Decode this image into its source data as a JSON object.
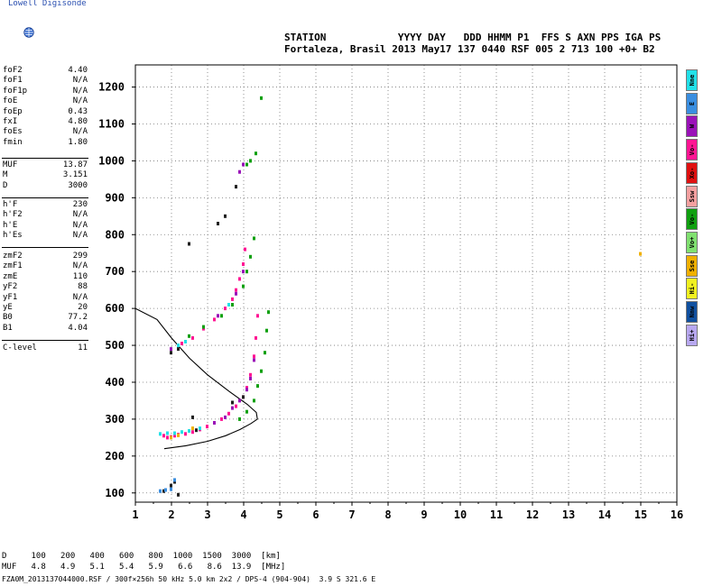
{
  "logo": {
    "text": "Lowell Digisonde"
  },
  "header": {
    "line1": "STATION            YYYY DAY   DDD HHMM P1  FFS S AXN PPS IGA PS",
    "line2": "Fortaleza, Brasil 2013 May17 137 0440 RSF 005 2 713 100 +0+ B2"
  },
  "params": {
    "group1": [
      {
        "label": "foF2",
        "value": "4.40"
      },
      {
        "label": "foF1",
        "value": "N/A"
      },
      {
        "label": "foF1p",
        "value": "N/A"
      },
      {
        "label": "foE",
        "value": "N/A"
      },
      {
        "label": "foEp",
        "value": "0.43"
      },
      {
        "label": "fxI",
        "value": "4.80"
      },
      {
        "label": "foEs",
        "value": "N/A"
      },
      {
        "label": "fmin",
        "value": "1.80"
      }
    ],
    "group2": [
      {
        "label": "MUF",
        "value": "13.87"
      },
      {
        "label": "M",
        "value": "3.151"
      },
      {
        "label": "D",
        "value": "3000"
      }
    ],
    "group3": [
      {
        "label": "h'F",
        "value": "230"
      },
      {
        "label": "h'F2",
        "value": "N/A"
      },
      {
        "label": "h'E",
        "value": "N/A"
      },
      {
        "label": "h'Es",
        "value": "N/A"
      }
    ],
    "group4": [
      {
        "label": "zmF2",
        "value": "299"
      },
      {
        "label": "zmF1",
        "value": "N/A"
      },
      {
        "label": "zmE",
        "value": "110"
      },
      {
        "label": "yF2",
        "value": "88"
      },
      {
        "label": "yF1",
        "value": "N/A"
      },
      {
        "label": "yE",
        "value": "20"
      },
      {
        "label": "B0",
        "value": "77.2"
      },
      {
        "label": "B1",
        "value": "4.04"
      }
    ],
    "group5": [
      {
        "label": "C-level",
        "value": "11"
      }
    ]
  },
  "legend": [
    {
      "label": "Nne",
      "color": "#22e0e8"
    },
    {
      "label": "E",
      "color": "#3a8ee0"
    },
    {
      "label": "W",
      "color": "#9a12b8"
    },
    {
      "label": "Vo-",
      "color": "#ff1493"
    },
    {
      "label": "Xo-",
      "color": "#e01010"
    },
    {
      "label": "Ssw",
      "color": "#f4a0a0"
    },
    {
      "label": "Vo-",
      "color": "#10a010"
    },
    {
      "label": "Vo+",
      "color": "#80e070"
    },
    {
      "label": "Sse",
      "color": "#f0b000"
    },
    {
      "label": "Hi-",
      "color": "#f0f020"
    },
    {
      "label": "Nnw",
      "color": "#1050a0"
    },
    {
      "label": "Hi+",
      "color": "#b8a8f0"
    }
  ],
  "chart_data": {
    "type": "scatter",
    "xlim": [
      1,
      16
    ],
    "ylim": [
      75,
      1260
    ],
    "x_ticks": [
      "1",
      "2",
      "3",
      "4",
      "5",
      "6",
      "7",
      "8",
      "9",
      "10",
      "11",
      "12",
      "13",
      "14",
      "15",
      "16"
    ],
    "y_ticks": [
      "100",
      "200",
      "300",
      "400",
      "500",
      "600",
      "700",
      "800",
      "900",
      "1000",
      "1100",
      "1200"
    ],
    "grid": true,
    "series": [
      {
        "color": "#ff1493",
        "points": [
          [
            1.8,
            255
          ],
          [
            1.9,
            250
          ],
          [
            2.0,
            252
          ],
          [
            2.1,
            255
          ],
          [
            2.2,
            258
          ],
          [
            2.4,
            260
          ],
          [
            2.6,
            265
          ],
          [
            2.8,
            272
          ],
          [
            3.0,
            280
          ],
          [
            3.2,
            290
          ],
          [
            3.4,
            300
          ],
          [
            3.6,
            315
          ],
          [
            3.8,
            335
          ],
          [
            4.0,
            360
          ],
          [
            4.1,
            385
          ],
          [
            4.2,
            420
          ],
          [
            4.3,
            470
          ],
          [
            4.35,
            520
          ],
          [
            4.4,
            580
          ],
          [
            2.3,
            505
          ],
          [
            2.6,
            520
          ],
          [
            2.9,
            545
          ],
          [
            3.2,
            570
          ],
          [
            3.5,
            600
          ],
          [
            3.7,
            625
          ],
          [
            3.8,
            650
          ],
          [
            3.9,
            680
          ],
          [
            4.0,
            720
          ],
          [
            4.05,
            760
          ]
        ]
      },
      {
        "color": "#10a010",
        "points": [
          [
            3.9,
            300
          ],
          [
            4.1,
            320
          ],
          [
            4.3,
            350
          ],
          [
            4.4,
            390
          ],
          [
            4.5,
            430
          ],
          [
            4.6,
            480
          ],
          [
            4.65,
            540
          ],
          [
            4.7,
            590
          ],
          [
            4.0,
            660
          ],
          [
            4.1,
            700
          ],
          [
            4.2,
            740
          ],
          [
            4.3,
            790
          ],
          [
            3.4,
            580
          ],
          [
            3.7,
            610
          ],
          [
            2.5,
            525
          ],
          [
            2.9,
            550
          ],
          [
            4.1,
            990
          ],
          [
            4.2,
            1000
          ],
          [
            4.35,
            1020
          ],
          [
            4.5,
            1170
          ]
        ]
      },
      {
        "color": "#22e0e8",
        "points": [
          [
            1.7,
            260
          ],
          [
            1.9,
            262
          ],
          [
            2.1,
            262
          ],
          [
            2.3,
            265
          ],
          [
            2.5,
            268
          ],
          [
            2.8,
            275
          ],
          [
            2.2,
            500
          ],
          [
            2.4,
            510
          ],
          [
            3.6,
            610
          ]
        ]
      },
      {
        "color": "#9a12b8",
        "points": [
          [
            3.2,
            290
          ],
          [
            3.5,
            305
          ],
          [
            3.7,
            330
          ],
          [
            3.9,
            350
          ],
          [
            4.1,
            380
          ],
          [
            4.2,
            410
          ],
          [
            4.3,
            460
          ],
          [
            3.3,
            580
          ],
          [
            3.8,
            640
          ],
          [
            4.0,
            700
          ],
          [
            3.9,
            970
          ],
          [
            4.0,
            990
          ],
          [
            2.0,
            490
          ]
        ]
      },
      {
        "color": "#202020",
        "points": [
          [
            2.0,
            480
          ],
          [
            2.2,
            490
          ],
          [
            3.7,
            345
          ],
          [
            4.0,
            360
          ],
          [
            2.2,
            95
          ],
          [
            1.8,
            105
          ],
          [
            2.6,
            305
          ],
          [
            2.7,
            270
          ],
          [
            3.3,
            830
          ],
          [
            3.5,
            850
          ],
          [
            3.8,
            930
          ],
          [
            2.5,
            775
          ],
          [
            2.0,
            120
          ],
          [
            2.1,
            130
          ]
        ]
      },
      {
        "color": "#f0b000",
        "points": [
          [
            2.0,
            250
          ],
          [
            2.2,
            256
          ],
          [
            2.6,
            275
          ],
          [
            15.0,
            748
          ]
        ]
      },
      {
        "color": "#3a8ee0",
        "points": [
          [
            1.7,
            105
          ],
          [
            1.85,
            108
          ],
          [
            2.0,
            110
          ],
          [
            2.1,
            135
          ]
        ]
      }
    ],
    "curves": [
      {
        "name": "virtual",
        "points": [
          [
            1.8,
            220
          ],
          [
            2.4,
            228
          ],
          [
            3.0,
            240
          ],
          [
            3.5,
            255
          ],
          [
            3.9,
            272
          ],
          [
            4.2,
            288
          ],
          [
            4.38,
            300
          ],
          [
            4.35,
            318
          ],
          [
            4.1,
            340
          ],
          [
            3.6,
            375
          ],
          [
            3.0,
            420
          ],
          [
            2.5,
            465
          ],
          [
            2.0,
            520
          ],
          [
            1.6,
            570
          ],
          [
            1.0,
            600
          ]
        ]
      }
    ]
  },
  "footer": {
    "line1": "D     100   200   400   600   800  1000  1500  3000  [km]",
    "line2": "MUF   4.8   4.9   5.1   5.4   5.9   6.6   8.6  13.9  [MHz]",
    "line3": "FZA0M_2013137044000.RSF / 300f×256h 50 kHz 5.0 km 2x2 / DPS-4 (904-904)  3.9 S 321.6 E"
  }
}
